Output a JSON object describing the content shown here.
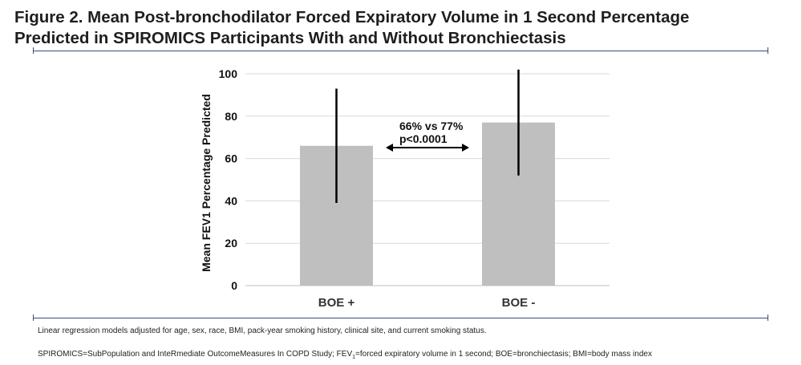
{
  "figure": {
    "title_line1": "Figure 2. Mean Post-bronchodilator Forced Expiratory Volume in 1 Second Percentage",
    "title_line2": "Predicted in SPIROMICS Participants With and Without Bronchiectasis"
  },
  "chart_data": {
    "type": "bar",
    "categories": [
      "BOE +",
      "BOE -"
    ],
    "values": [
      66,
      77
    ],
    "error_bars": [
      {
        "low": 39,
        "high": 93
      },
      {
        "low": 52,
        "high": 102
      }
    ],
    "ylabel": "Mean FEV1 Percentage Predicted",
    "xlabel": "",
    "ylim": [
      0,
      100
    ],
    "yticks": [
      "0",
      "20",
      "40",
      "60",
      "80",
      "100"
    ],
    "ytick_values": [
      0,
      20,
      40,
      60,
      80,
      100
    ],
    "grid": true,
    "annotation": {
      "line1": "66% vs 77%",
      "line2": "p<0.0001",
      "arrow": "double-headed between bars"
    },
    "bar_color": "#bfbfbf",
    "error_color": "#000000"
  },
  "footnotes": {
    "line1": "Linear regression models adjusted for age, sex, race, BMI, pack-year smoking history, clinical site, and current smoking status.",
    "line2_pre": "SPIROMICS=SubPopulation and InteRmediate OutcomeMeasures In COPD Study; FEV",
    "line2_sub": "1",
    "line2_post": "=forced expiratory volume in 1 second; BOE=bronchiectasis; BMI=body mass index"
  },
  "colors": {
    "rule": "#3b4a7a",
    "text": "#1e1e1e"
  }
}
